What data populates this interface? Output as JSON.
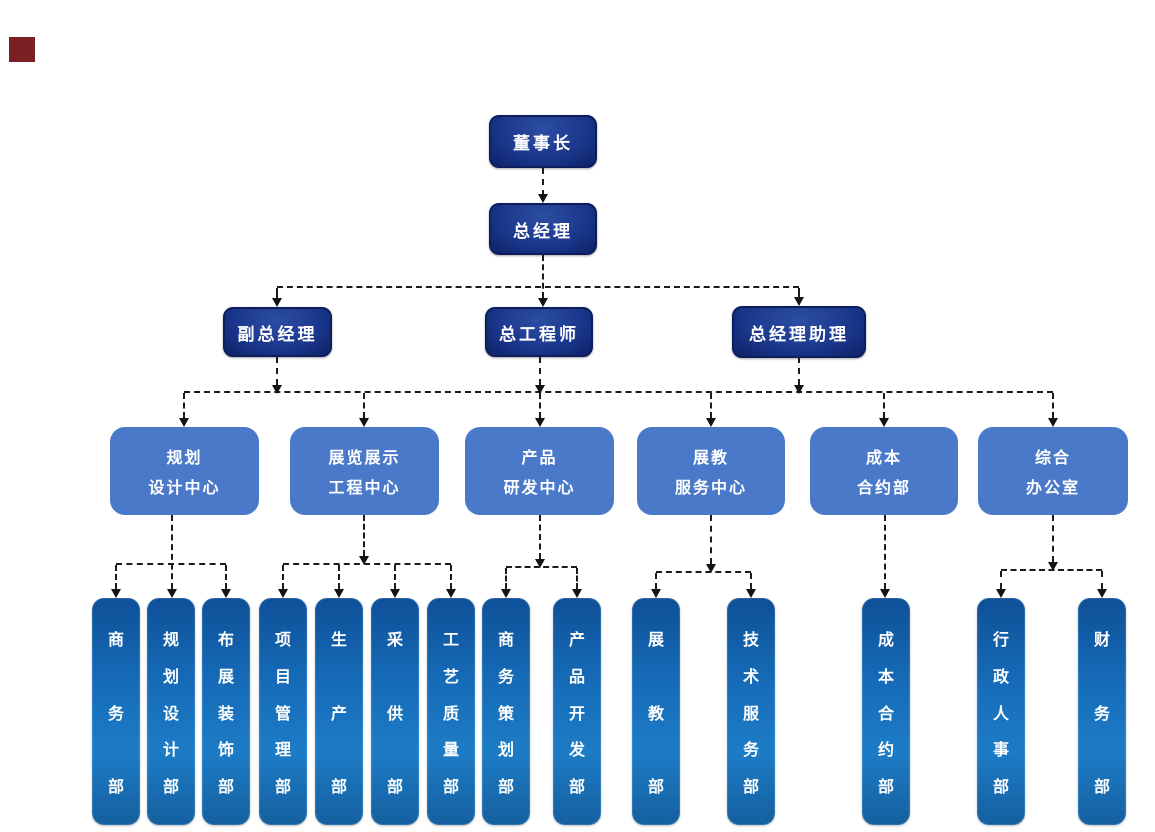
{
  "page": {
    "background": "#ffffff"
  },
  "colors": {
    "dark_node": "#1b388e",
    "mid_node": "#4b79ca",
    "tall_node_top": "#0e5098",
    "tall_node_bottom": "#1d7cc6",
    "connector": "#1b1b1b",
    "corner_marker": "#7a2024"
  },
  "org": {
    "level1": {
      "label": "董事长"
    },
    "level2": {
      "label": "总经理"
    },
    "level3": [
      {
        "label": "副总经理"
      },
      {
        "label": "总工程师"
      },
      {
        "label": "总经理助理"
      }
    ],
    "level4": [
      {
        "lines": [
          "规划",
          "设计中心"
        ]
      },
      {
        "lines": [
          "展览展示",
          "工程中心"
        ]
      },
      {
        "lines": [
          "产品",
          "研发中心"
        ]
      },
      {
        "lines": [
          "展教",
          "服务中心"
        ]
      },
      {
        "lines": [
          "成本",
          "合约部"
        ]
      },
      {
        "lines": [
          "综合",
          "办公室"
        ]
      }
    ],
    "level5": [
      {
        "label": "商务部"
      },
      {
        "label": "规划设计部"
      },
      {
        "label": "布展装饰部"
      },
      {
        "label": "项目管理部"
      },
      {
        "label": "生产部"
      },
      {
        "label": "采供部"
      },
      {
        "label": "工艺质量部"
      },
      {
        "label": "商务策划部"
      },
      {
        "label": "产品开发部"
      },
      {
        "label": "展教部"
      },
      {
        "label": "技术服务部"
      },
      {
        "label": "成本合约部"
      },
      {
        "label": "行政人事部"
      },
      {
        "label": "财务部"
      }
    ]
  }
}
